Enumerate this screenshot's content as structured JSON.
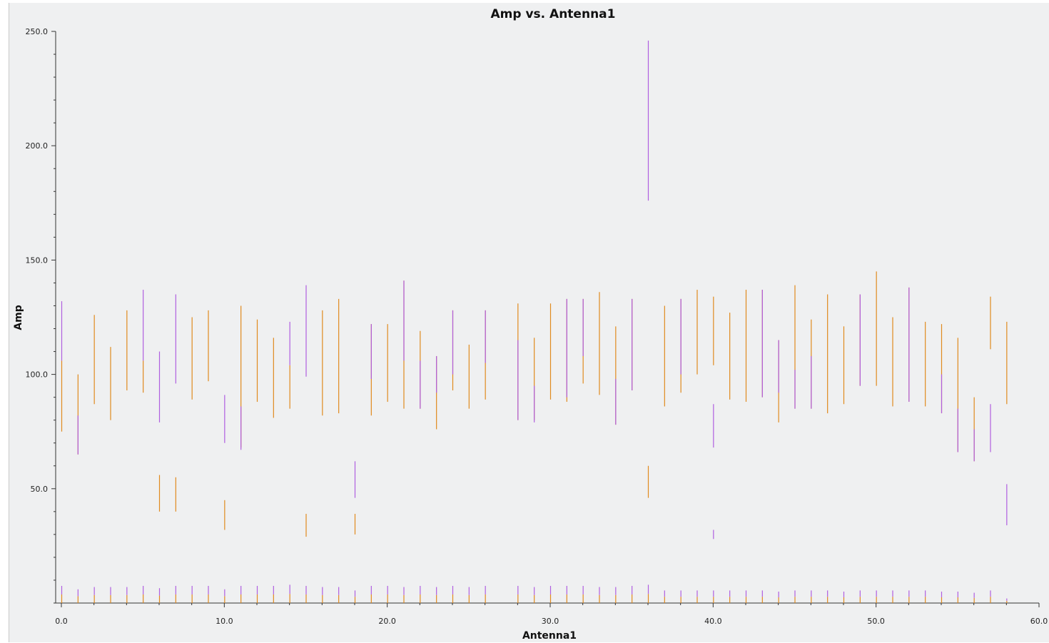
{
  "chart_data": {
    "type": "scatter",
    "title": "Amp vs. Antenna1",
    "xlabel": "Antenna1",
    "ylabel": "Amp",
    "xlim": [
      0,
      60
    ],
    "ylim": [
      0,
      250
    ],
    "x_ticks": [
      "0.0",
      "10.0",
      "20.0",
      "30.0",
      "40.0",
      "50.0",
      "60.0"
    ],
    "y_ticks": [
      "50.0",
      "100.0",
      "150.0",
      "200.0",
      "250.0"
    ],
    "grid": false,
    "legend": "none",
    "series": [
      {
        "color": "#e08a1e",
        "segments": [
          [
            0,
            75,
            106
          ],
          [
            1,
            65,
            100
          ],
          [
            2,
            87,
            126
          ],
          [
            3,
            80,
            112
          ],
          [
            4,
            93,
            128
          ],
          [
            5,
            92,
            106
          ],
          [
            6,
            40,
            56
          ],
          [
            7,
            40,
            55
          ],
          [
            8,
            89,
            125
          ],
          [
            9,
            97,
            128
          ],
          [
            10,
            32,
            45
          ],
          [
            11,
            68,
            130
          ],
          [
            12,
            88,
            124
          ],
          [
            13,
            81,
            116
          ],
          [
            14,
            85,
            104
          ],
          [
            15,
            29,
            39
          ],
          [
            16,
            82,
            128
          ],
          [
            17,
            83,
            133
          ],
          [
            18,
            30,
            39
          ],
          [
            19,
            82,
            122
          ],
          [
            20,
            88,
            122
          ],
          [
            21,
            85,
            141
          ],
          [
            22,
            85,
            119
          ],
          [
            23,
            76,
            108
          ],
          [
            24,
            93,
            128
          ],
          [
            25,
            85,
            113
          ],
          [
            26,
            89,
            128
          ],
          [
            28,
            80,
            131
          ],
          [
            29,
            80,
            116
          ],
          [
            30,
            89,
            131
          ],
          [
            31,
            88,
            133
          ],
          [
            32,
            96,
            133
          ],
          [
            33,
            91,
            136
          ],
          [
            34,
            78,
            121
          ],
          [
            35,
            93,
            133
          ],
          [
            36,
            46,
            60
          ],
          [
            37,
            86,
            130
          ],
          [
            38,
            92,
            133
          ],
          [
            39,
            100,
            137
          ],
          [
            40,
            104,
            134
          ],
          [
            41,
            89,
            127
          ],
          [
            42,
            88,
            137
          ],
          [
            43,
            90,
            137
          ],
          [
            44,
            79,
            115
          ],
          [
            45,
            85,
            139
          ],
          [
            46,
            85,
            124
          ],
          [
            47,
            83,
            135
          ],
          [
            48,
            87,
            121
          ],
          [
            49,
            95,
            135
          ],
          [
            50,
            95,
            145
          ],
          [
            51,
            86,
            125
          ],
          [
            52,
            88,
            138
          ],
          [
            53,
            86,
            123
          ],
          [
            54,
            83,
            122
          ],
          [
            55,
            66,
            116
          ],
          [
            56,
            62,
            90
          ],
          [
            57,
            111,
            134
          ],
          [
            58,
            87,
            123
          ]
        ]
      },
      {
        "color": "#b05ee0",
        "segments": [
          [
            0,
            106,
            132
          ],
          [
            1,
            65,
            82
          ],
          [
            5,
            106,
            137
          ],
          [
            6,
            79,
            110
          ],
          [
            7,
            96,
            135
          ],
          [
            10,
            70,
            91
          ],
          [
            11,
            67,
            86
          ],
          [
            14,
            104,
            123
          ],
          [
            15,
            99,
            139
          ],
          [
            18,
            46,
            62
          ],
          [
            19,
            98,
            122
          ],
          [
            21,
            106,
            141
          ],
          [
            22,
            85,
            106
          ],
          [
            23,
            92,
            108
          ],
          [
            24,
            100,
            128
          ],
          [
            26,
            105,
            128
          ],
          [
            28,
            80,
            115
          ],
          [
            29,
            79,
            95
          ],
          [
            31,
            90,
            133
          ],
          [
            32,
            108,
            133
          ],
          [
            34,
            78,
            98
          ],
          [
            35,
            93,
            133
          ],
          [
            36,
            176,
            246
          ],
          [
            38,
            100,
            133
          ],
          [
            40,
            68,
            87
          ],
          [
            40,
            28,
            32
          ],
          [
            43,
            90,
            137
          ],
          [
            44,
            92,
            115
          ],
          [
            45,
            85,
            102
          ],
          [
            46,
            85,
            108
          ],
          [
            49,
            95,
            135
          ],
          [
            52,
            88,
            138
          ],
          [
            54,
            83,
            100
          ],
          [
            55,
            66,
            85
          ],
          [
            56,
            62,
            76
          ],
          [
            57,
            66,
            87
          ],
          [
            58,
            34,
            52
          ]
        ]
      }
    ],
    "baseline_segments": [
      [
        0,
        7.5
      ],
      [
        1,
        6
      ],
      [
        2,
        7
      ],
      [
        3,
        7
      ],
      [
        4,
        7
      ],
      [
        5,
        7.5
      ],
      [
        6,
        6.5
      ],
      [
        7,
        7.5
      ],
      [
        8,
        7.5
      ],
      [
        9,
        7.5
      ],
      [
        10,
        6
      ],
      [
        11,
        7.5
      ],
      [
        12,
        7.5
      ],
      [
        13,
        7.5
      ],
      [
        14,
        8
      ],
      [
        15,
        7.5
      ],
      [
        16,
        7
      ],
      [
        17,
        7
      ],
      [
        18,
        5.5
      ],
      [
        19,
        7.5
      ],
      [
        20,
        7.5
      ],
      [
        21,
        7
      ],
      [
        22,
        7.5
      ],
      [
        23,
        7
      ],
      [
        24,
        7.5
      ],
      [
        25,
        7
      ],
      [
        26,
        7.5
      ],
      [
        28,
        7.5
      ],
      [
        29,
        7
      ],
      [
        30,
        7.5
      ],
      [
        31,
        7.5
      ],
      [
        32,
        7.5
      ],
      [
        33,
        7
      ],
      [
        34,
        7
      ],
      [
        35,
        7.5
      ],
      [
        36,
        8
      ],
      [
        37,
        5.5
      ],
      [
        38,
        5.5
      ],
      [
        39,
        5.5
      ],
      [
        40,
        5.5
      ],
      [
        41,
        5.5
      ],
      [
        42,
        5.5
      ],
      [
        43,
        5.5
      ],
      [
        44,
        5
      ],
      [
        45,
        5.5
      ],
      [
        46,
        5.5
      ],
      [
        47,
        5.5
      ],
      [
        48,
        5
      ],
      [
        49,
        5.5
      ],
      [
        50,
        5.5
      ],
      [
        51,
        5.5
      ],
      [
        52,
        5.5
      ],
      [
        53,
        5.5
      ],
      [
        54,
        5
      ],
      [
        55,
        5
      ],
      [
        56,
        4.5
      ],
      [
        57,
        5.5
      ],
      [
        58,
        2
      ]
    ]
  }
}
